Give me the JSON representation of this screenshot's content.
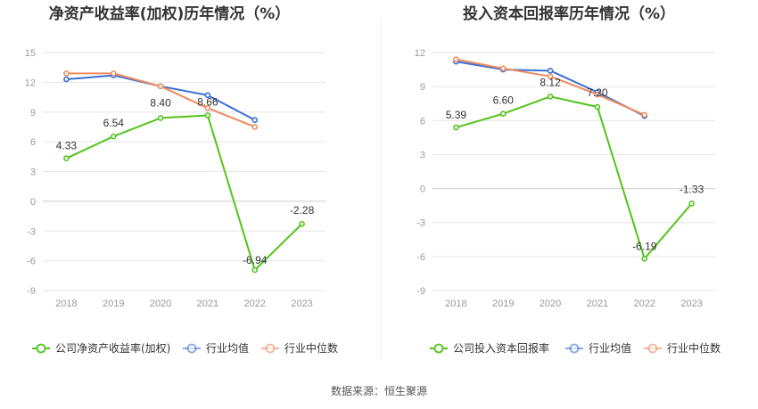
{
  "footer": {
    "source": "数据来源：恒生聚源"
  },
  "chart_data": [
    {
      "type": "line",
      "title": "净资产收益率(加权)历年情况（%）",
      "categories": [
        "2018",
        "2019",
        "2020",
        "2021",
        "2022",
        "2023"
      ],
      "ylim": [
        -9,
        15
      ],
      "yticks": [
        -9,
        -6,
        -3,
        0,
        3,
        6,
        9,
        12,
        15
      ],
      "grid": true,
      "legend_position": "bottom",
      "series": [
        {
          "name": "公司净资产收益率(加权)",
          "color": "#52c41a",
          "values": [
            4.33,
            6.54,
            8.4,
            8.66,
            -6.94,
            -2.28
          ],
          "labels": [
            "4.33",
            "6.54",
            "8.40",
            "8.66",
            "-6.94",
            "-2.28"
          ]
        },
        {
          "name": "行业均值",
          "color": "#3b6fd6",
          "values": [
            12.3,
            12.7,
            11.6,
            10.7,
            8.2,
            null
          ]
        },
        {
          "name": "行业中位数",
          "color": "#f08a5d",
          "values": [
            12.9,
            12.9,
            11.6,
            9.4,
            7.5,
            null
          ]
        }
      ]
    },
    {
      "type": "line",
      "title": "投入资本回报率历年情况（%）",
      "categories": [
        "2018",
        "2019",
        "2020",
        "2021",
        "2022",
        "2023"
      ],
      "ylim": [
        -9,
        12
      ],
      "yticks": [
        -9,
        -6,
        -3,
        0,
        3,
        6,
        9,
        12
      ],
      "grid": true,
      "legend_position": "bottom",
      "series": [
        {
          "name": "公司投入资本回报率",
          "color": "#52c41a",
          "values": [
            5.39,
            6.6,
            8.12,
            7.2,
            -6.19,
            -1.33
          ],
          "labels": [
            "5.39",
            "6.60",
            "8.12",
            "7.20",
            "-6.19",
            "-1.33"
          ]
        },
        {
          "name": "行业均值",
          "color": "#3b6fd6",
          "values": [
            11.2,
            10.5,
            10.4,
            8.5,
            6.4,
            null
          ]
        },
        {
          "name": "行业中位数",
          "color": "#f08a5d",
          "values": [
            11.4,
            10.6,
            9.9,
            8.3,
            6.5,
            null
          ]
        }
      ]
    }
  ]
}
